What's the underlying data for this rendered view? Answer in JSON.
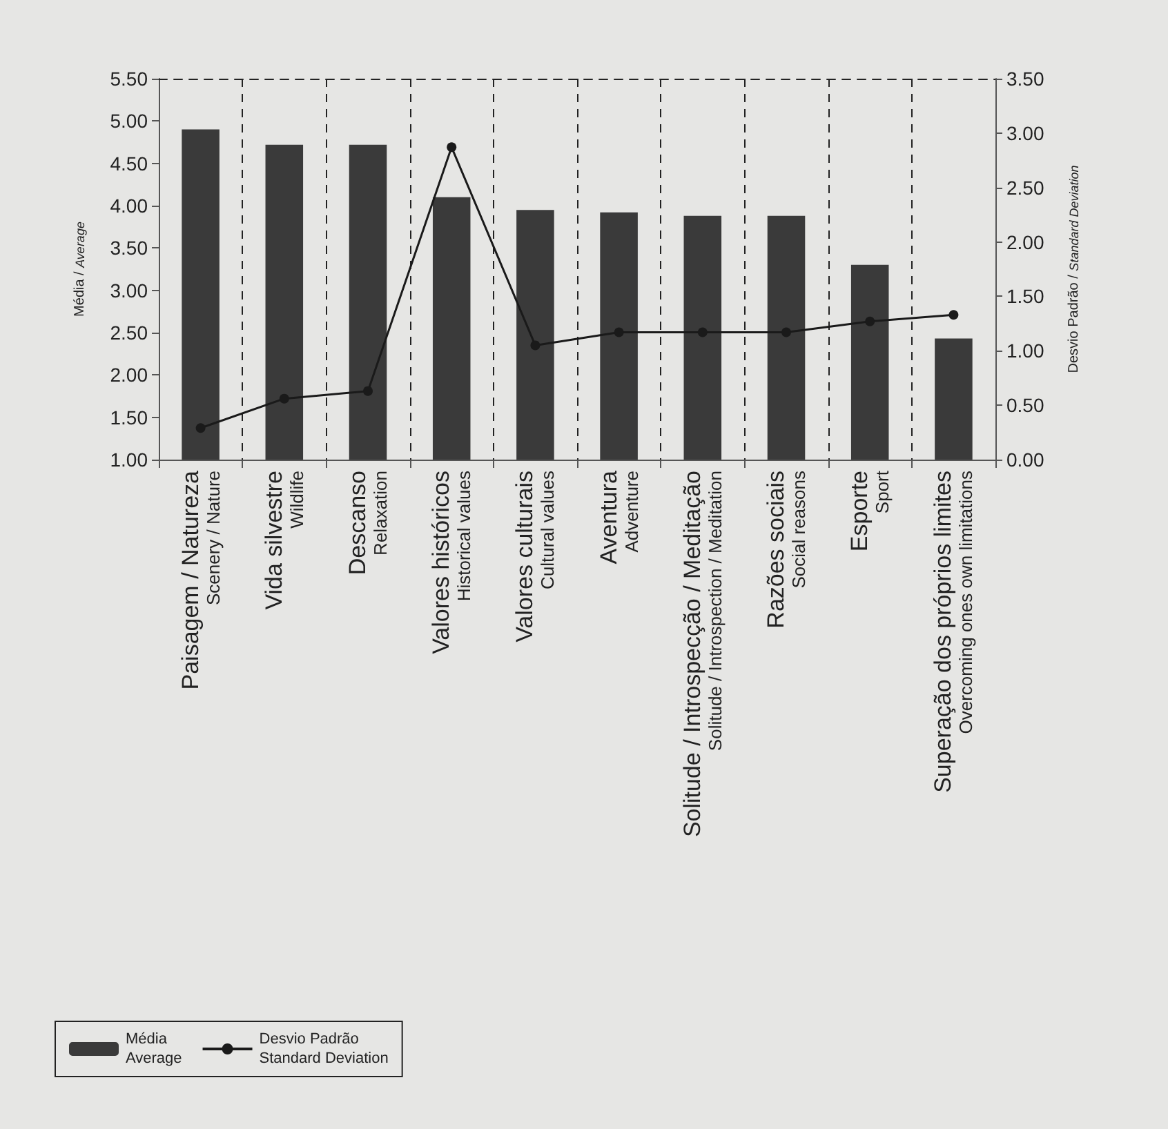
{
  "chart_data": {
    "type": "bar",
    "ylabel": "Média / Average",
    "y2label": "Desvio Padrão / Standard Deviation",
    "categories": [
      "Paisagem / Natureza\nScenery / Nature",
      "Vida silvestre\nWildlife",
      "Descanso\nRelaxation",
      "Valores históricos\nHistorical values",
      "Valores culturais\nCultural values",
      "Aventura\nAdventure",
      "Solitude / Introspecção / Meditação\nSolitude / Introspection / Meditation",
      "Razões sociais\nSocial reasons",
      "Esporte\nSport",
      "Superação dos próprios limites\nOvercoming ones own limitations"
    ],
    "series": [
      {
        "name": "Média\nAverage",
        "color": "#3a3a3a",
        "values": [
          4.9,
          4.72,
          4.72,
          4.1,
          3.95,
          3.92,
          3.88,
          3.88,
          3.3,
          2.43
        ]
      },
      {
        "name": "Desvio Padrão\nStandard Deviation",
        "type": "line",
        "axis": "y2",
        "color": "#1a1a1a",
        "marker": "circle",
        "values": [
          0.29,
          0.56,
          0.63,
          2.87,
          1.05,
          1.17,
          1.17,
          1.17,
          1.27,
          1.33
        ]
      }
    ],
    "ylim": [
      1.0,
      5.5
    ],
    "yticks": [
      {
        "value": 1,
        "label": "1.00"
      },
      {
        "value": 1.5,
        "label": "1.50"
      },
      {
        "value": 2,
        "label": "2.00"
      },
      {
        "value": 2.5,
        "label": "2.50"
      },
      {
        "value": 3,
        "label": "3.00"
      },
      {
        "value": 3.5,
        "label": "3.50"
      },
      {
        "value": 4,
        "label": "4.00"
      },
      {
        "value": 4.5,
        "label": "4.50"
      },
      {
        "value": 5,
        "label": "5.00"
      },
      {
        "value": 5.5,
        "label": "5.50"
      }
    ],
    "y2lim": [
      0,
      3.5
    ],
    "y2ticks": [
      {
        "value": 0,
        "label": "0.00"
      },
      {
        "value": 0.5,
        "label": "0.50"
      },
      {
        "value": 1,
        "label": "1.00"
      },
      {
        "value": 1.5,
        "label": "1.50"
      },
      {
        "value": 2,
        "label": "2.00"
      },
      {
        "value": 2.5,
        "label": "2.50"
      },
      {
        "value": 3,
        "label": "3.00"
      },
      {
        "value": 3.5,
        "label": "3.50"
      }
    ],
    "grid": "x",
    "legend": "bottom left"
  }
}
